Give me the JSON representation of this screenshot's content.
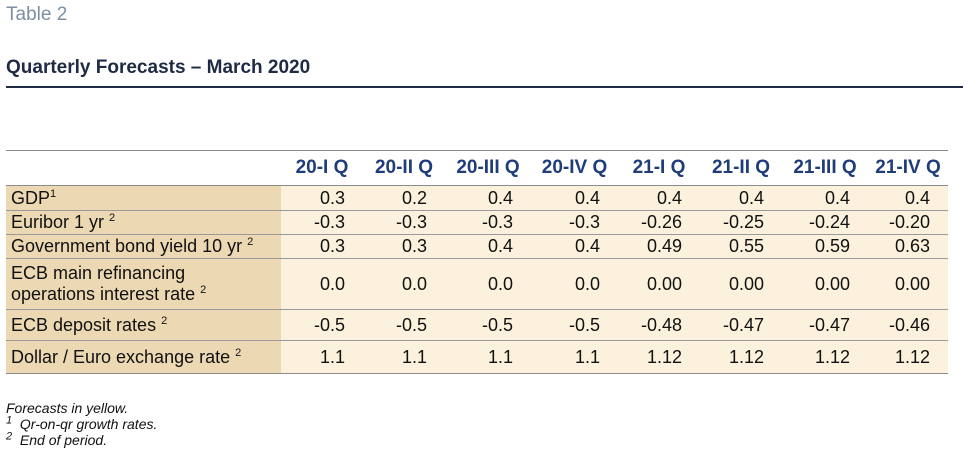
{
  "header": {
    "table_label": "Table 2",
    "title": "Quarterly Forecasts – March 2020"
  },
  "columns": [
    "20-I Q",
    "20-II Q",
    "20-III Q",
    "20-IV Q",
    "21-I Q",
    "21-II Q",
    "21-III Q",
    "21-IV Q"
  ],
  "rows": [
    {
      "label": "GDP",
      "sup": "1",
      "values": [
        "0.3",
        "0.2",
        "0.4",
        "0.4",
        "0.4",
        "0.4",
        "0.4",
        "0.4"
      ]
    },
    {
      "label": "Euribor 1 yr ",
      "sup": "2",
      "values": [
        "-0.3",
        "-0.3",
        "-0.3",
        "-0.3",
        "-0.26",
        "-0.25",
        "-0.24",
        "-0.20"
      ]
    },
    {
      "label": "Government bond yield 10 yr ",
      "sup": "2",
      "values": [
        "0.3",
        "0.3",
        "0.4",
        "0.4",
        "0.49",
        "0.55",
        "0.59",
        "0.63"
      ]
    },
    {
      "label_line1": "ECB main refinancing",
      "label_line2": "operations interest rate ",
      "sup": "2",
      "values": [
        "0.0",
        "0.0",
        "0.0",
        "0.0",
        "0.00",
        "0.00",
        "0.00",
        "0.00"
      ]
    },
    {
      "label": "ECB deposit rates ",
      "sup": "2",
      "values": [
        "-0.5",
        "-0.5",
        "-0.5",
        "-0.5",
        "-0.48",
        "-0.47",
        "-0.47",
        "-0.46"
      ]
    },
    {
      "label": "Dollar / Euro exchange rate ",
      "sup": "2",
      "values": [
        "1.1",
        "1.1",
        "1.1",
        "1.1",
        "1.12",
        "1.12",
        "1.12",
        "1.12"
      ]
    }
  ],
  "notes": {
    "forecasts": "Forecasts in yellow.",
    "note1_mark": "1",
    "note1": "Qr-on-qr growth rates.",
    "note2_mark": "2",
    "note2": "End of period."
  },
  "colors": {
    "label_column": "#ecd9b3",
    "value_cells": "#fbf1dc",
    "header_text": "#1f3d7a",
    "title_text": "#1f2a44",
    "table_label": "#7d8fa3"
  }
}
